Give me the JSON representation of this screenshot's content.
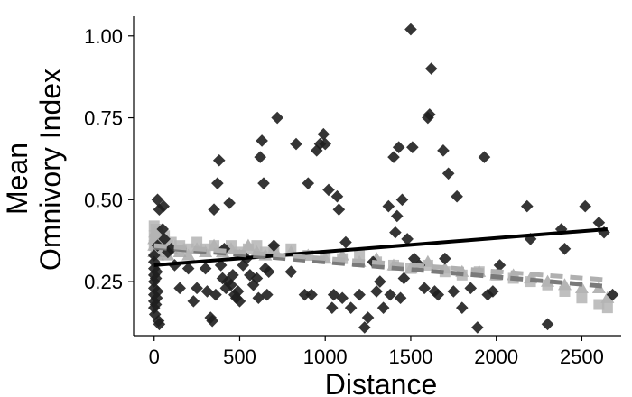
{
  "chart_data": {
    "type": "scatter",
    "title": "",
    "xlabel": "Distance",
    "ylabel_lines": [
      "Mean",
      "Omnivory Index"
    ],
    "xlim": [
      -120,
      2730
    ],
    "ylim": [
      0.085,
      1.06
    ],
    "x_ticks": [
      0,
      500,
      1000,
      1500,
      2000,
      2500
    ],
    "x_tick_labels": [
      "0",
      "500",
      "1000",
      "1500",
      "2000",
      "2500"
    ],
    "y_ticks": [
      0.25,
      0.5,
      0.75,
      1.0
    ],
    "y_tick_labels": [
      "0.25",
      "0.50",
      "0.75",
      "1.00"
    ],
    "grid": false,
    "legend": "none",
    "series": [
      {
        "marker": "diamond",
        "color": "#1f1f1f",
        "points": [
          [
            0,
            0.17
          ],
          [
            0,
            0.19
          ],
          [
            0,
            0.21
          ],
          [
            0,
            0.23
          ],
          [
            0,
            0.25
          ],
          [
            0,
            0.27
          ],
          [
            0,
            0.29
          ],
          [
            0,
            0.31
          ],
          [
            0,
            0.33
          ],
          [
            5,
            0.15
          ],
          [
            10,
            0.18
          ],
          [
            15,
            0.2
          ],
          [
            20,
            0.22
          ],
          [
            10,
            0.26
          ],
          [
            15,
            0.28
          ],
          [
            20,
            0.36
          ],
          [
            25,
            0.13
          ],
          [
            30,
            0.12
          ],
          [
            30,
            0.47
          ],
          [
            50,
            0.41
          ],
          [
            55,
            0.48
          ],
          [
            20,
            0.5
          ],
          [
            60,
            0.38
          ],
          [
            100,
            0.35
          ],
          [
            80,
            0.34
          ],
          [
            120,
            0.3
          ],
          [
            150,
            0.23
          ],
          [
            200,
            0.29
          ],
          [
            230,
            0.19
          ],
          [
            250,
            0.23
          ],
          [
            300,
            0.29
          ],
          [
            310,
            0.22
          ],
          [
            330,
            0.14
          ],
          [
            340,
            0.13
          ],
          [
            350,
            0.47
          ],
          [
            360,
            0.21
          ],
          [
            370,
            0.55
          ],
          [
            380,
            0.62
          ],
          [
            390,
            0.3
          ],
          [
            400,
            0.26
          ],
          [
            410,
            0.35
          ],
          [
            420,
            0.23
          ],
          [
            430,
            0.25
          ],
          [
            440,
            0.49
          ],
          [
            450,
            0.24
          ],
          [
            460,
            0.27
          ],
          [
            470,
            0.21
          ],
          [
            480,
            0.2
          ],
          [
            490,
            0.22
          ],
          [
            500,
            0.19
          ],
          [
            520,
            0.3
          ],
          [
            540,
            0.32
          ],
          [
            560,
            0.27
          ],
          [
            580,
            0.24
          ],
          [
            600,
            0.26
          ],
          [
            610,
            0.2
          ],
          [
            620,
            0.63
          ],
          [
            630,
            0.68
          ],
          [
            640,
            0.55
          ],
          [
            650,
            0.29
          ],
          [
            660,
            0.21
          ],
          [
            670,
            0.28
          ],
          [
            700,
            0.36
          ],
          [
            720,
            0.75
          ],
          [
            800,
            0.28
          ],
          [
            830,
            0.67
          ],
          [
            880,
            0.21
          ],
          [
            900,
            0.55
          ],
          [
            920,
            0.21
          ],
          [
            950,
            0.65
          ],
          [
            970,
            0.67
          ],
          [
            990,
            0.7
          ],
          [
            1000,
            0.67
          ],
          [
            1020,
            0.53
          ],
          [
            1040,
            0.17
          ],
          [
            1050,
            0.21
          ],
          [
            1070,
            0.51
          ],
          [
            1080,
            0.47
          ],
          [
            1100,
            0.2
          ],
          [
            1120,
            0.37
          ],
          [
            1150,
            0.17
          ],
          [
            1200,
            0.21
          ],
          [
            1230,
            0.11
          ],
          [
            1250,
            0.14
          ],
          [
            1280,
            0.31
          ],
          [
            1300,
            0.22
          ],
          [
            1320,
            0.25
          ],
          [
            1340,
            0.17
          ],
          [
            1370,
            0.48
          ],
          [
            1380,
            0.21
          ],
          [
            1400,
            0.63
          ],
          [
            1410,
            0.4
          ],
          [
            1420,
            0.45
          ],
          [
            1430,
            0.66
          ],
          [
            1440,
            0.2
          ],
          [
            1450,
            0.5
          ],
          [
            1460,
            0.26
          ],
          [
            1480,
            0.38
          ],
          [
            1500,
            1.02
          ],
          [
            1510,
            0.66
          ],
          [
            1520,
            0.32
          ],
          [
            1550,
            0.3
          ],
          [
            1580,
            0.23
          ],
          [
            1600,
            0.75
          ],
          [
            1610,
            0.76
          ],
          [
            1620,
            0.9
          ],
          [
            1640,
            0.22
          ],
          [
            1660,
            0.21
          ],
          [
            1690,
            0.65
          ],
          [
            1700,
            0.32
          ],
          [
            1720,
            0.58
          ],
          [
            1750,
            0.22
          ],
          [
            1770,
            0.51
          ],
          [
            1800,
            0.17
          ],
          [
            1850,
            0.23
          ],
          [
            1890,
            0.11
          ],
          [
            1930,
            0.63
          ],
          [
            1950,
            0.21
          ],
          [
            1980,
            0.22
          ],
          [
            2020,
            0.3
          ],
          [
            2180,
            0.48
          ],
          [
            2200,
            0.38
          ],
          [
            2300,
            0.12
          ],
          [
            2380,
            0.41
          ],
          [
            2400,
            0.35
          ],
          [
            2520,
            0.48
          ],
          [
            2600,
            0.43
          ],
          [
            2630,
            0.4
          ],
          [
            2680,
            0.21
          ]
        ]
      },
      {
        "marker": "triangle",
        "color": "#a8a8a8",
        "points": [
          [
            0,
            0.34
          ],
          [
            0,
            0.36
          ],
          [
            0,
            0.38
          ],
          [
            5,
            0.4
          ],
          [
            10,
            0.35
          ],
          [
            15,
            0.37
          ],
          [
            20,
            0.33
          ],
          [
            25,
            0.39
          ],
          [
            30,
            0.35
          ],
          [
            40,
            0.36
          ],
          [
            60,
            0.34
          ],
          [
            80,
            0.33
          ],
          [
            100,
            0.35
          ],
          [
            150,
            0.34
          ],
          [
            200,
            0.33
          ],
          [
            250,
            0.35
          ],
          [
            300,
            0.34
          ],
          [
            350,
            0.36
          ],
          [
            400,
            0.34
          ],
          [
            450,
            0.35
          ],
          [
            500,
            0.33
          ],
          [
            550,
            0.36
          ],
          [
            600,
            0.34
          ],
          [
            650,
            0.33
          ],
          [
            700,
            0.35
          ],
          [
            800,
            0.34
          ],
          [
            900,
            0.33
          ],
          [
            1000,
            0.32
          ],
          [
            1100,
            0.33
          ],
          [
            1200,
            0.31
          ],
          [
            1300,
            0.32
          ],
          [
            1400,
            0.3
          ],
          [
            1500,
            0.29
          ],
          [
            1600,
            0.31
          ],
          [
            1700,
            0.29
          ],
          [
            1800,
            0.28
          ],
          [
            1900,
            0.28
          ],
          [
            2000,
            0.27
          ],
          [
            2100,
            0.27
          ],
          [
            2200,
            0.26
          ],
          [
            2300,
            0.25
          ],
          [
            2400,
            0.24
          ],
          [
            2500,
            0.23
          ],
          [
            2600,
            0.23
          ],
          [
            2650,
            0.2
          ]
        ]
      },
      {
        "marker": "square",
        "color": "#b4b4b4",
        "points": [
          [
            0,
            0.36
          ],
          [
            0,
            0.39
          ],
          [
            0,
            0.42
          ],
          [
            5,
            0.38
          ],
          [
            10,
            0.41
          ],
          [
            15,
            0.37
          ],
          [
            20,
            0.4
          ],
          [
            25,
            0.35
          ],
          [
            30,
            0.38
          ],
          [
            40,
            0.37
          ],
          [
            60,
            0.39
          ],
          [
            80,
            0.36
          ],
          [
            100,
            0.37
          ],
          [
            150,
            0.36
          ],
          [
            200,
            0.35
          ],
          [
            250,
            0.37
          ],
          [
            300,
            0.35
          ],
          [
            350,
            0.36
          ],
          [
            400,
            0.34
          ],
          [
            450,
            0.36
          ],
          [
            500,
            0.34
          ],
          [
            550,
            0.35
          ],
          [
            600,
            0.36
          ],
          [
            650,
            0.34
          ],
          [
            700,
            0.35
          ],
          [
            800,
            0.35
          ],
          [
            900,
            0.33
          ],
          [
            1000,
            0.33
          ],
          [
            1100,
            0.32
          ],
          [
            1200,
            0.33
          ],
          [
            1300,
            0.31
          ],
          [
            1400,
            0.3
          ],
          [
            1500,
            0.29
          ],
          [
            1600,
            0.3
          ],
          [
            1700,
            0.28
          ],
          [
            1800,
            0.27
          ],
          [
            1900,
            0.28
          ],
          [
            2000,
            0.27
          ],
          [
            2100,
            0.26
          ],
          [
            2200,
            0.25
          ],
          [
            2300,
            0.24
          ],
          [
            2400,
            0.22
          ],
          [
            2500,
            0.2
          ],
          [
            2600,
            0.18
          ],
          [
            2650,
            0.17
          ]
        ]
      }
    ],
    "trend_lines": [
      {
        "style": "solid",
        "color": "#000000",
        "points": [
          [
            0,
            0.3
          ],
          [
            2650,
            0.41
          ]
        ]
      },
      {
        "style": "dashed",
        "color": "#7a7a7a",
        "points": [
          [
            0,
            0.355
          ],
          [
            2650,
            0.235
          ]
        ]
      },
      {
        "style": "dashed",
        "color": "#b0b0b0",
        "points": [
          [
            0,
            0.36
          ],
          [
            2650,
            0.255
          ]
        ]
      }
    ]
  }
}
